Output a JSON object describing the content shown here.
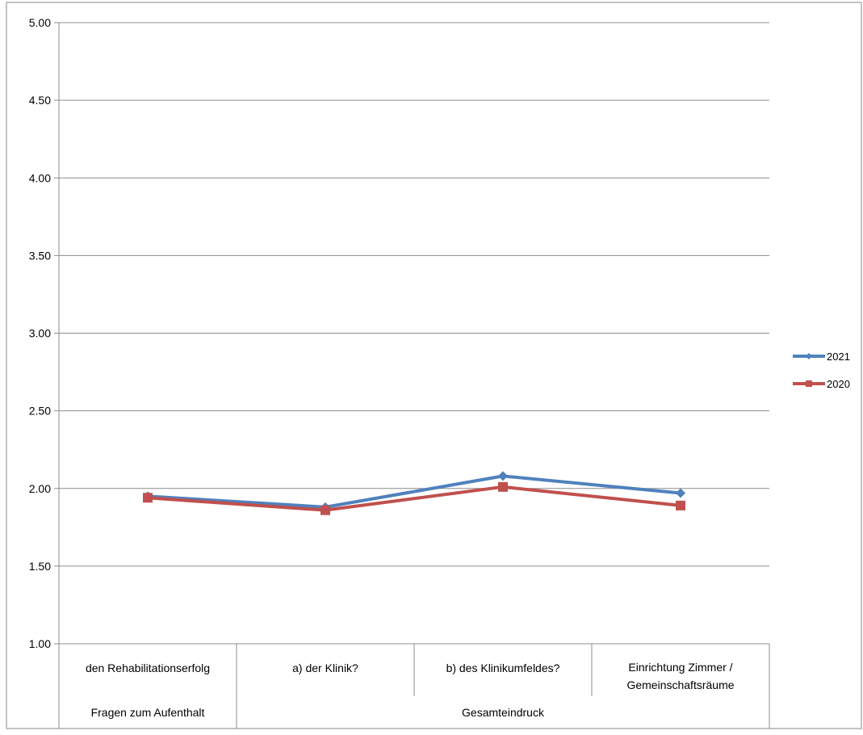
{
  "chart_data": {
    "type": "line",
    "title": "",
    "xlabel": "",
    "ylabel": "",
    "ylim": [
      1.0,
      5.0
    ],
    "yticks": [
      1.0,
      1.5,
      2.0,
      2.5,
      3.0,
      3.5,
      4.0,
      4.5,
      5.0
    ],
    "ytick_labels": [
      "1.00",
      "1.50",
      "2.00",
      "2.50",
      "3.00",
      "3.50",
      "4.00",
      "4.50",
      "5.00"
    ],
    "grid": true,
    "legend_position": "right",
    "categories": [
      "den Rehabilitationserfolg",
      "a) der Klinik?",
      "b) des Klinikumfeldes?",
      "Einrichtung Zimmer / Gemeinschaftsräume"
    ],
    "category_lines": [
      [
        "den Rehabilitationserfolg"
      ],
      [
        "a) der Klinik?"
      ],
      [
        "b) des Klinikumfeldes?"
      ],
      [
        "Einrichtung Zimmer /",
        "Gemeinschaftsräume"
      ]
    ],
    "groups": [
      {
        "label": "Fragen zum Aufenthalt",
        "span": [
          0,
          0
        ]
      },
      {
        "label": "Gesamteindruck",
        "span": [
          1,
          3
        ]
      }
    ],
    "series": [
      {
        "name": "2021",
        "values": [
          1.95,
          1.88,
          2.08,
          1.97
        ],
        "color": "#4F81BD",
        "marker": "diamond"
      },
      {
        "name": "2020",
        "values": [
          1.94,
          1.86,
          2.01,
          1.89
        ],
        "color": "#C0504D",
        "marker": "square"
      }
    ]
  }
}
